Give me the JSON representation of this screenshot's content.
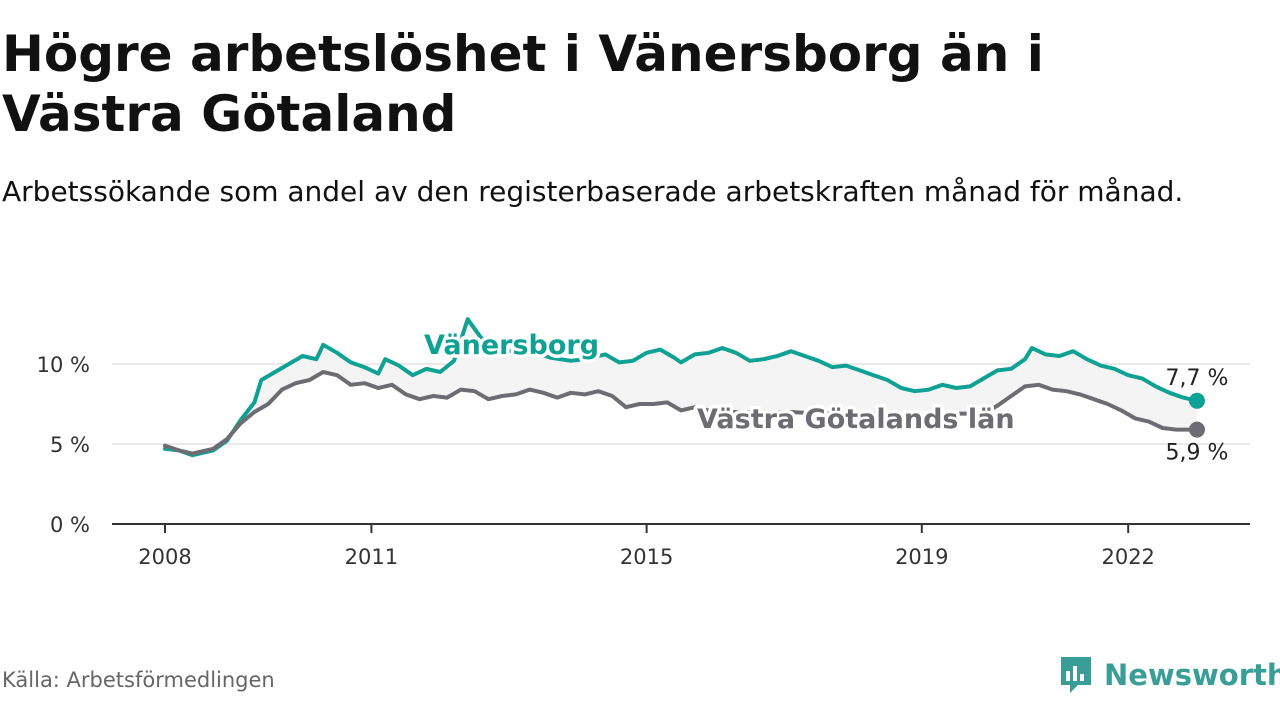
{
  "title": "Högre arbetslöshet i Vänersborg än i Västra Götaland",
  "subtitle": "Arbetssökande som andel av den registerbaserade arbetskraften månad för månad.",
  "source": "Källa: Arbetsförmedlingen",
  "brand": {
    "name": "Newsworthy",
    "icon": "newsworthy-logo-icon"
  },
  "colors": {
    "vanersborg": "#10a195",
    "vastra": "#6e6c73",
    "band": "#f4f4f4",
    "grid": "#dddddd",
    "axis": "#333333"
  },
  "chart_data": {
    "type": "line",
    "title": "Högre arbetslöshet i Vänersborg än i Västra Götaland",
    "xlabel": "",
    "ylabel": "",
    "xlim": [
      2008.0,
      2023.0
    ],
    "ylim": [
      0,
      12
    ],
    "x_ticks": [
      2008,
      2011,
      2015,
      2019,
      2022
    ],
    "x_tick_labels": [
      "2008",
      "2011",
      "2015",
      "2019",
      "2022"
    ],
    "y_ticks": [
      0,
      5,
      10
    ],
    "y_tick_labels": [
      "0 %",
      "5 %",
      "10 %"
    ],
    "grid": true,
    "series": [
      {
        "name": "Vänersborg",
        "color": "#10a195",
        "last_label": "7,7 %",
        "points": [
          [
            2008.0,
            4.7
          ],
          [
            2008.2,
            4.6
          ],
          [
            2008.4,
            4.3
          ],
          [
            2008.7,
            4.6
          ],
          [
            2008.9,
            5.2
          ],
          [
            2009.1,
            6.5
          ],
          [
            2009.3,
            7.6
          ],
          [
            2009.4,
            9.0
          ],
          [
            2009.6,
            9.5
          ],
          [
            2009.8,
            10.0
          ],
          [
            2010.0,
            10.5
          ],
          [
            2010.2,
            10.3
          ],
          [
            2010.3,
            11.2
          ],
          [
            2010.5,
            10.7
          ],
          [
            2010.7,
            10.1
          ],
          [
            2010.9,
            9.8
          ],
          [
            2011.1,
            9.4
          ],
          [
            2011.2,
            10.3
          ],
          [
            2011.4,
            9.9
          ],
          [
            2011.6,
            9.3
          ],
          [
            2011.8,
            9.7
          ],
          [
            2012.0,
            9.5
          ],
          [
            2012.2,
            10.2
          ],
          [
            2012.4,
            12.8
          ],
          [
            2012.6,
            11.6
          ],
          [
            2012.8,
            11.1
          ],
          [
            2013.0,
            10.8
          ],
          [
            2013.2,
            10.9
          ],
          [
            2013.4,
            10.7
          ],
          [
            2013.6,
            10.4
          ],
          [
            2013.9,
            10.2
          ],
          [
            2014.1,
            10.3
          ],
          [
            2014.4,
            10.6
          ],
          [
            2014.6,
            10.1
          ],
          [
            2014.8,
            10.2
          ],
          [
            2015.0,
            10.7
          ],
          [
            2015.2,
            10.9
          ],
          [
            2015.4,
            10.4
          ],
          [
            2015.5,
            10.1
          ],
          [
            2015.7,
            10.6
          ],
          [
            2015.9,
            10.7
          ],
          [
            2016.1,
            11.0
          ],
          [
            2016.3,
            10.7
          ],
          [
            2016.5,
            10.2
          ],
          [
            2016.7,
            10.3
          ],
          [
            2016.9,
            10.5
          ],
          [
            2017.1,
            10.8
          ],
          [
            2017.3,
            10.5
          ],
          [
            2017.5,
            10.2
          ],
          [
            2017.7,
            9.8
          ],
          [
            2017.9,
            9.9
          ],
          [
            2018.1,
            9.6
          ],
          [
            2018.3,
            9.3
          ],
          [
            2018.5,
            9.0
          ],
          [
            2018.7,
            8.5
          ],
          [
            2018.9,
            8.3
          ],
          [
            2019.1,
            8.4
          ],
          [
            2019.3,
            8.7
          ],
          [
            2019.5,
            8.5
          ],
          [
            2019.7,
            8.6
          ],
          [
            2019.9,
            9.1
          ],
          [
            2020.1,
            9.6
          ],
          [
            2020.3,
            9.7
          ],
          [
            2020.5,
            10.3
          ],
          [
            2020.6,
            11.0
          ],
          [
            2020.8,
            10.6
          ],
          [
            2021.0,
            10.5
          ],
          [
            2021.2,
            10.8
          ],
          [
            2021.4,
            10.3
          ],
          [
            2021.6,
            9.9
          ],
          [
            2021.8,
            9.7
          ],
          [
            2022.0,
            9.3
          ],
          [
            2022.2,
            9.1
          ],
          [
            2022.4,
            8.6
          ],
          [
            2022.6,
            8.2
          ],
          [
            2022.8,
            7.9
          ],
          [
            2023.0,
            7.7
          ]
        ]
      },
      {
        "name": "Västra Götalands län",
        "color": "#6e6c73",
        "last_label": "5,9 %",
        "points": [
          [
            2008.0,
            4.9
          ],
          [
            2008.2,
            4.6
          ],
          [
            2008.4,
            4.4
          ],
          [
            2008.7,
            4.7
          ],
          [
            2008.9,
            5.3
          ],
          [
            2009.1,
            6.3
          ],
          [
            2009.3,
            7.0
          ],
          [
            2009.5,
            7.5
          ],
          [
            2009.7,
            8.4
          ],
          [
            2009.9,
            8.8
          ],
          [
            2010.1,
            9.0
          ],
          [
            2010.3,
            9.5
          ],
          [
            2010.5,
            9.3
          ],
          [
            2010.7,
            8.7
          ],
          [
            2010.9,
            8.8
          ],
          [
            2011.1,
            8.5
          ],
          [
            2011.3,
            8.7
          ],
          [
            2011.5,
            8.1
          ],
          [
            2011.7,
            7.8
          ],
          [
            2011.9,
            8.0
          ],
          [
            2012.1,
            7.9
          ],
          [
            2012.3,
            8.4
          ],
          [
            2012.5,
            8.3
          ],
          [
            2012.7,
            7.8
          ],
          [
            2012.9,
            8.0
          ],
          [
            2013.1,
            8.1
          ],
          [
            2013.3,
            8.4
          ],
          [
            2013.5,
            8.2
          ],
          [
            2013.7,
            7.9
          ],
          [
            2013.9,
            8.2
          ],
          [
            2014.1,
            8.1
          ],
          [
            2014.3,
            8.3
          ],
          [
            2014.5,
            8.0
          ],
          [
            2014.7,
            7.3
          ],
          [
            2014.9,
            7.5
          ],
          [
            2015.1,
            7.5
          ],
          [
            2015.3,
            7.6
          ],
          [
            2015.5,
            7.1
          ],
          [
            2015.7,
            7.3
          ],
          [
            2015.9,
            7.1
          ],
          [
            2016.3,
            7.0
          ],
          [
            2016.7,
            7.0
          ],
          [
            2017.1,
            7.0
          ],
          [
            2017.5,
            6.9
          ],
          [
            2017.9,
            6.9
          ],
          [
            2018.3,
            6.9
          ],
          [
            2018.7,
            6.8
          ],
          [
            2019.1,
            6.8
          ],
          [
            2019.5,
            6.9
          ],
          [
            2019.9,
            6.9
          ],
          [
            2020.1,
            7.4
          ],
          [
            2020.3,
            8.0
          ],
          [
            2020.5,
            8.6
          ],
          [
            2020.7,
            8.7
          ],
          [
            2020.9,
            8.4
          ],
          [
            2021.1,
            8.3
          ],
          [
            2021.3,
            8.1
          ],
          [
            2021.5,
            7.8
          ],
          [
            2021.7,
            7.5
          ],
          [
            2021.9,
            7.1
          ],
          [
            2022.1,
            6.6
          ],
          [
            2022.3,
            6.4
          ],
          [
            2022.5,
            6.0
          ],
          [
            2022.7,
            5.9
          ],
          [
            2023.0,
            5.9
          ]
        ]
      }
    ],
    "annotations": [
      "Vänersborg",
      "Västra Götalands län"
    ]
  }
}
